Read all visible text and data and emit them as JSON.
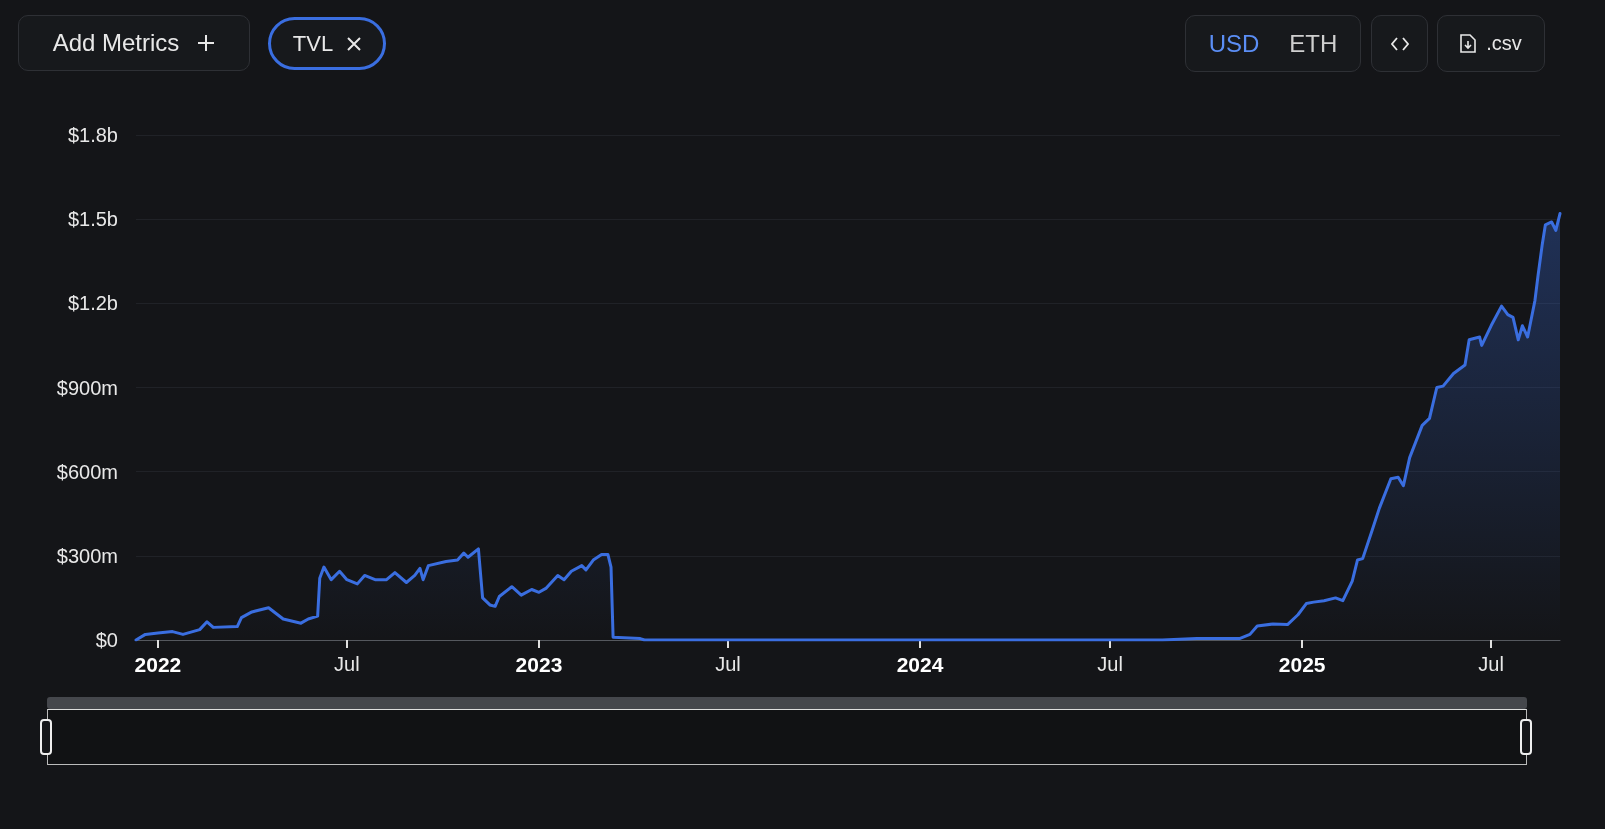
{
  "chart_data": {
    "type": "area",
    "annotations": [
      "Add Metrics",
      "TVL",
      "USD",
      "ETH",
      ".csv"
    ],
    "series": [
      {
        "color": "#3a6ee0",
        "x": [
          "2021-12-11",
          "2021-12-20",
          "2022-01-01",
          "2022-01-15",
          "2022-01-25",
          "2022-02-10",
          "2022-02-17",
          "2022-02-23",
          "2022-03-18",
          "2022-03-22",
          "2022-04-01",
          "2022-04-17",
          "2022-05-01",
          "2022-05-18",
          "2022-05-25",
          "2022-06-03",
          "2022-06-05",
          "2022-06-09",
          "2022-06-16",
          "2022-06-24",
          "2022-07-01",
          "2022-07-11",
          "2022-07-18",
          "2022-07-28",
          "2022-08-08",
          "2022-08-16",
          "2022-08-27",
          "2022-09-04",
          "2022-09-09",
          "2022-09-12",
          "2022-09-17",
          "2022-10-04",
          "2022-10-15",
          "2022-10-21",
          "2022-10-25",
          "2022-11-04",
          "2022-11-05",
          "2022-11-08",
          "2022-11-15",
          "2022-11-20",
          "2022-11-24",
          "2022-12-06",
          "2022-12-15",
          "2022-12-25",
          "2023-01-01",
          "2023-01-08",
          "2023-01-19",
          "2023-01-25",
          "2023-02-01",
          "2023-02-11",
          "2023-02-15",
          "2023-02-22",
          "2023-03-02",
          "2023-03-08",
          "2023-03-11",
          "2023-03-13",
          "2023-04-08",
          "2023-04-12",
          "2024-08-20",
          "2024-09-22",
          "2024-11-02",
          "2024-11-12",
          "2024-11-19",
          "2024-12-04",
          "2024-12-18",
          "2024-12-28",
          "2025-01-05",
          "2025-01-12",
          "2025-01-22",
          "2025-02-02",
          "2025-02-09",
          "2025-02-18",
          "2025-02-23",
          "2025-02-28",
          "2025-03-09",
          "2025-03-16",
          "2025-03-27",
          "2025-04-03",
          "2025-04-08",
          "2025-04-14",
          "2025-04-26",
          "2025-05-03",
          "2025-05-10",
          "2025-05-16",
          "2025-05-26",
          "2025-06-06",
          "2025-06-10",
          "2025-06-20",
          "2025-06-22",
          "2025-07-01",
          "2025-07-11",
          "2025-07-17",
          "2025-07-22",
          "2025-07-27",
          "2025-07-31",
          "2025-08-05",
          "2025-08-12",
          "2025-08-15",
          "2025-08-19",
          "2025-08-22",
          "2025-08-28",
          "2025-09-01",
          "2025-09-05"
        ],
        "values": [
          0,
          20000000,
          25000000,
          30000000,
          20000000,
          37000000,
          65000000,
          45000000,
          48000000,
          80000000,
          100000000,
          115000000,
          75000000,
          60000000,
          75000000,
          85000000,
          220000000,
          260000000,
          215000000,
          245000000,
          215000000,
          200000000,
          230000000,
          215000000,
          215000000,
          240000000,
          205000000,
          230000000,
          255000000,
          215000000,
          265000000,
          280000000,
          285000000,
          310000000,
          295000000,
          325000000,
          280000000,
          150000000,
          125000000,
          120000000,
          155000000,
          190000000,
          160000000,
          180000000,
          170000000,
          185000000,
          230000000,
          215000000,
          245000000,
          265000000,
          250000000,
          285000000,
          305000000,
          305000000,
          260000000,
          10000000,
          5000000,
          0,
          0,
          5000000,
          5000000,
          20000000,
          50000000,
          57000000,
          55000000,
          90000000,
          130000000,
          135000000,
          140000000,
          150000000,
          140000000,
          210000000,
          285000000,
          290000000,
          390000000,
          470000000,
          575000000,
          580000000,
          550000000,
          650000000,
          765000000,
          790000000,
          900000000,
          905000000,
          950000000,
          980000000,
          1070000000,
          1080000000,
          1050000000,
          1120000000,
          1190000000,
          1160000000,
          1150000000,
          1070000000,
          1120000000,
          1080000000,
          1210000000,
          1300000000,
          1410000000,
          1480000000,
          1490000000,
          1460000000,
          1520000000
        ]
      }
    ],
    "xlim": [
      "2021-12-11",
      "2025-09-05"
    ],
    "xticks": [
      {
        "value": "2022-01-01",
        "label": "2022"
      },
      {
        "value": "2022-07-01",
        "label": "Jul"
      },
      {
        "value": "2023-01-01",
        "label": "2023"
      },
      {
        "value": "2023-07-01",
        "label": "Jul"
      },
      {
        "value": "2024-01-01",
        "label": "2024"
      },
      {
        "value": "2024-07-01",
        "label": "Jul"
      },
      {
        "value": "2025-01-01",
        "label": "2025"
      },
      {
        "value": "2025-07-01",
        "label": "Jul"
      }
    ],
    "ylim": [
      0,
      1800000000
    ],
    "yticks": [
      {
        "value": 0,
        "label": "$0"
      },
      {
        "value": 300000000,
        "label": "$300m"
      },
      {
        "value": 600000000,
        "label": "$600m"
      },
      {
        "value": 900000000,
        "label": "$900m"
      },
      {
        "value": 1200000000,
        "label": "$1.2b"
      },
      {
        "value": 1500000000,
        "label": "$1.5b"
      },
      {
        "value": 1800000000,
        "label": "$1.8b"
      }
    ],
    "grid": "y",
    "marker": "none",
    "line_style": "solid"
  }
}
